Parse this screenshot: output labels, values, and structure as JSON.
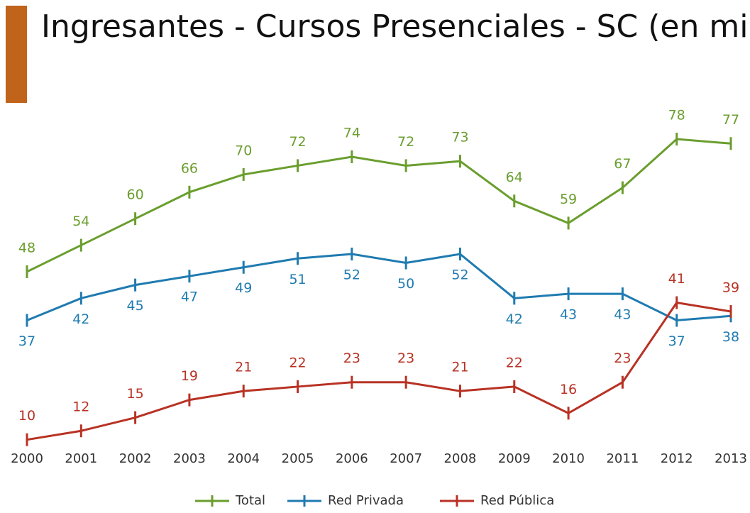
{
  "chart_data": {
    "type": "line",
    "title": "Ingresantes - Cursos Presenciales - SC (en miles)",
    "categories": [
      "2000",
      "2001",
      "2002",
      "2003",
      "2004",
      "2005",
      "2006",
      "2007",
      "2008",
      "2009",
      "2010",
      "2011",
      "2012",
      "2013"
    ],
    "series": [
      {
        "name": "Total",
        "color": "#6a9e2e",
        "values": [
          48,
          54,
          60,
          66,
          70,
          72,
          74,
          72,
          73,
          64,
          59,
          67,
          78,
          77
        ]
      },
      {
        "name": "Red Privada",
        "color": "#1f7bb0",
        "values": [
          37,
          42,
          45,
          47,
          49,
          51,
          52,
          50,
          52,
          42,
          43,
          43,
          37,
          38
        ]
      },
      {
        "name": "Red Pública",
        "color": "#b83224",
        "values": [
          10,
          12,
          15,
          19,
          21,
          22,
          23,
          23,
          21,
          22,
          16,
          23,
          41,
          39
        ]
      }
    ],
    "legend": "bottom"
  }
}
